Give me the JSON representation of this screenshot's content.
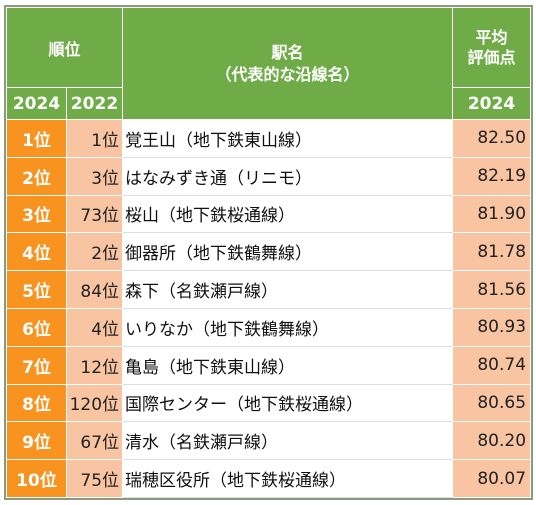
{
  "header": {
    "rank_label": "順位",
    "station_label_line1": "駅名",
    "station_label_line2": "（代表的な沿線名）",
    "score_label_line1": "平均",
    "score_label_line2": "評価点",
    "year_2024": "2024",
    "year_2022": "2022",
    "score_year": "2024"
  },
  "rows": [
    {
      "rank_2024": "1位",
      "rank_2022": "1位",
      "station": "覚王山（地下鉄東山線）",
      "score": "82.50"
    },
    {
      "rank_2024": "2位",
      "rank_2022": "3位",
      "station": "はなみずき通（リニモ）",
      "score": "82.19"
    },
    {
      "rank_2024": "3位",
      "rank_2022": "73位",
      "station": "桜山（地下鉄桜通線）",
      "score": "81.90"
    },
    {
      "rank_2024": "4位",
      "rank_2022": "2位",
      "station": "御器所（地下鉄鶴舞線）",
      "score": "81.78"
    },
    {
      "rank_2024": "5位",
      "rank_2022": "84位",
      "station": "森下（名鉄瀬戸線）",
      "score": "81.56"
    },
    {
      "rank_2024": "6位",
      "rank_2022": "4位",
      "station": "いりなか（地下鉄鶴舞線）",
      "score": "80.93"
    },
    {
      "rank_2024": "7位",
      "rank_2022": "12位",
      "station": "亀島（地下鉄東山線）",
      "score": "80.74"
    },
    {
      "rank_2024": "8位",
      "rank_2022": "120位",
      "station": "国際センター（地下鉄桜通線）",
      "score": "80.65"
    },
    {
      "rank_2024": "9位",
      "rank_2022": "67位",
      "station": "清水（名鉄瀬戸線）",
      "score": "80.20"
    },
    {
      "rank_2024": "10位",
      "rank_2022": "75位",
      "station": "瑞穂区役所（地下鉄桜通線）",
      "score": "80.07"
    }
  ]
}
